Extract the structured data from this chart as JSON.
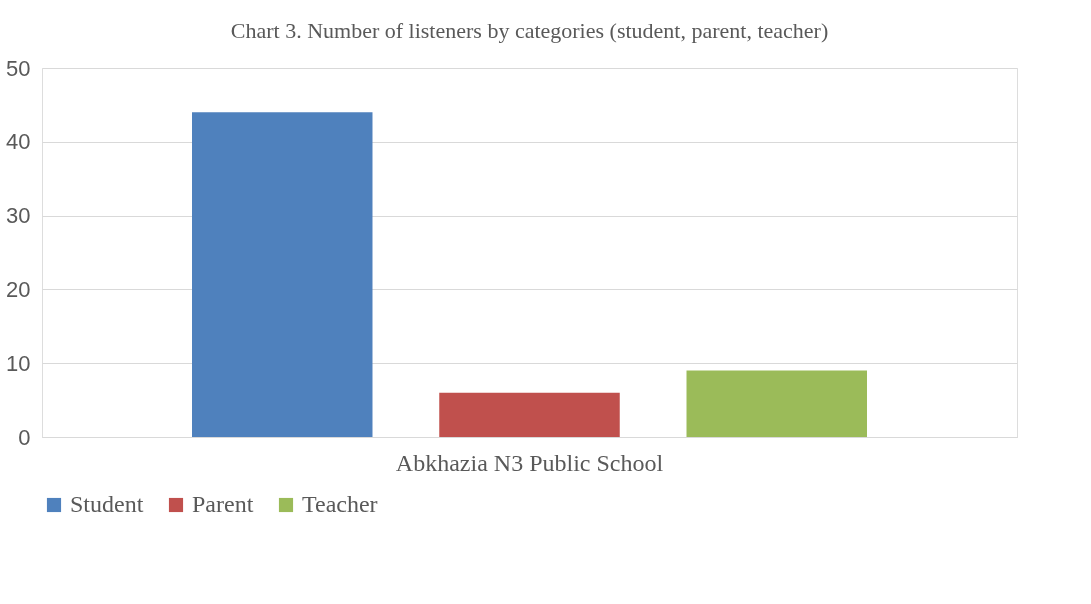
{
  "chart_data": {
    "type": "bar",
    "title": "Chart 3. Number of listeners by categories (student, parent, teacher)",
    "categories": [
      "Abkhazia N3 Public School"
    ],
    "series": [
      {
        "name": "Student",
        "color": "#4f81bd",
        "values": [
          44
        ]
      },
      {
        "name": "Parent",
        "color": "#c0504d",
        "values": [
          6
        ]
      },
      {
        "name": "Teacher",
        "color": "#9bbb59",
        "values": [
          9
        ]
      }
    ],
    "ylim": [
      0,
      50
    ],
    "yticks": [
      0,
      10,
      20,
      30,
      40,
      50
    ],
    "grid": "y",
    "legend": "bottom"
  }
}
